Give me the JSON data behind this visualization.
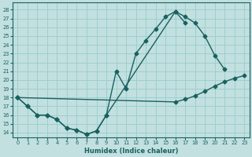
{
  "xlabel": "Humidex (Indice chaleur)",
  "bg_color": "#c2e0e0",
  "grid_color": "#9ecece",
  "line_color": "#1a6060",
  "xlim": [
    -0.5,
    23.5
  ],
  "ylim": [
    13.5,
    28.8
  ],
  "xticks": [
    0,
    1,
    2,
    3,
    4,
    5,
    6,
    7,
    8,
    9,
    10,
    11,
    12,
    13,
    14,
    15,
    16,
    17,
    18,
    19,
    20,
    21,
    22,
    23
  ],
  "yticks": [
    14,
    15,
    16,
    17,
    18,
    19,
    20,
    21,
    22,
    23,
    24,
    25,
    26,
    27,
    28
  ],
  "line1_x": [
    0,
    1,
    2,
    3,
    4,
    5,
    6,
    7,
    8,
    9,
    10,
    11,
    12,
    13,
    14,
    15,
    16,
    17,
    18,
    19,
    20,
    21
  ],
  "line1_y": [
    18.0,
    17.0,
    16.0,
    16.0,
    15.5,
    14.5,
    14.3,
    13.8,
    14.2,
    16.0,
    21.0,
    19.0,
    23.0,
    24.5,
    25.8,
    27.2,
    27.8,
    27.2,
    26.5,
    25.0,
    22.8,
    21.2
  ],
  "line2_x": [
    0,
    16,
    17,
    18,
    19,
    20,
    21,
    22,
    23
  ],
  "line2_y": [
    18.0,
    17.5,
    17.8,
    18.2,
    18.7,
    19.3,
    19.8,
    20.2,
    20.5
  ],
  "line3_x": [
    0,
    1,
    2,
    3,
    4,
    5,
    6,
    7,
    8,
    9,
    16,
    17
  ],
  "line3_y": [
    18.0,
    17.0,
    16.0,
    16.0,
    15.5,
    14.5,
    14.3,
    13.8,
    14.2,
    16.0,
    27.8,
    26.5
  ]
}
